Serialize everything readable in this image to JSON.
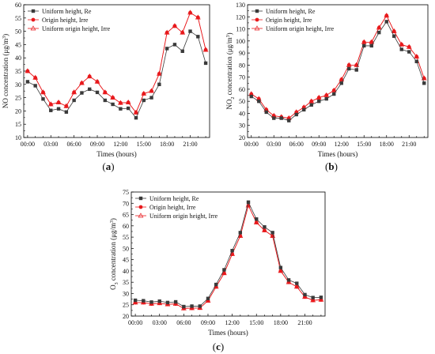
{
  "colors": {
    "re": "#3a3a3a",
    "irre": "#e8191c",
    "uniform_irre": "#e8191c"
  },
  "chart_data": [
    {
      "panel": "(a)",
      "type": "line",
      "xlabel": "Times (hours)",
      "ylabel": "NO concentration (μg/m³)",
      "ylabel_parts": {
        "main": "NO concentration (μg/m",
        "sup": "3",
        "end": ")"
      },
      "x_ticks": [
        "00:00",
        "03:00",
        "06:00",
        "09:00",
        "12:00",
        "15:00",
        "18:00",
        "21:00"
      ],
      "y_ticks": [
        "10",
        "15",
        "20",
        "25",
        "30",
        "35",
        "40",
        "45",
        "50",
        "55",
        "60"
      ],
      "ylim": [
        10,
        60
      ],
      "xlim": [
        -0.5,
        23.5
      ],
      "legend_position": "top-left",
      "x": [
        0,
        1,
        2,
        3,
        4,
        5,
        6,
        7,
        8,
        9,
        10,
        11,
        12,
        13,
        14,
        15,
        16,
        17,
        18,
        19,
        20,
        21,
        22,
        23
      ],
      "series": [
        {
          "name": "Uniform height, Re",
          "marker": "square",
          "values": [
            31,
            29.5,
            24.5,
            20.2,
            20.8,
            19.6,
            24,
            26.8,
            28.2,
            27,
            24,
            22.5,
            20.8,
            21,
            17.4,
            24,
            25,
            30,
            43.5,
            45,
            42.5,
            50,
            48,
            38
          ]
        },
        {
          "name": "Origin height, Irre",
          "marker": "circle",
          "values": [
            35,
            32.5,
            27,
            22.5,
            23.2,
            21.8,
            27,
            30.5,
            33,
            31,
            27,
            25,
            23,
            23.2,
            19.4,
            26.5,
            27.5,
            34,
            49.5,
            52,
            49.5,
            57,
            55.2,
            43
          ]
        },
        {
          "name": "Uniform origin height, Irre",
          "marker": "triangle",
          "values": [
            35,
            32.5,
            27,
            22.5,
            23.2,
            21.8,
            27,
            30.5,
            33,
            31,
            27,
            25,
            23,
            23.2,
            19.4,
            26.5,
            27.5,
            34,
            49.5,
            52,
            49.5,
            57,
            55.2,
            43
          ]
        }
      ]
    },
    {
      "panel": "(b)",
      "type": "line",
      "xlabel": "Times (hours)",
      "ylabel": "NO₂ concentration (μg/m³)",
      "ylabel_parts": {
        "main": "NO",
        "sub": "2",
        "mid": " concentration (μg/m",
        "sup": "3",
        "end": ")"
      },
      "x_ticks": [
        "00:00",
        "03:00",
        "06:00",
        "09:00",
        "12:00",
        "15:00",
        "18:00",
        "21:00"
      ],
      "y_ticks": [
        "20",
        "30",
        "40",
        "50",
        "60",
        "70",
        "80",
        "90",
        "100",
        "110",
        "120",
        "130"
      ],
      "ylim": [
        20,
        130
      ],
      "xlim": [
        -0.5,
        23.5
      ],
      "legend_position": "top-left",
      "x": [
        0,
        1,
        2,
        3,
        4,
        5,
        6,
        7,
        8,
        9,
        10,
        11,
        12,
        13,
        14,
        15,
        16,
        17,
        18,
        19,
        20,
        21,
        22,
        23
      ],
      "series": [
        {
          "name": "Uniform height, Re",
          "marker": "square",
          "values": [
            54,
            50,
            41,
            36,
            36,
            34,
            39,
            43,
            47,
            50,
            52,
            56,
            65,
            77,
            76,
            96,
            96,
            107,
            116,
            104,
            93,
            91,
            83,
            65
          ]
        },
        {
          "name": "Origin height, Irre",
          "marker": "circle",
          "values": [
            56,
            52,
            43,
            38,
            37,
            36,
            41,
            45,
            50,
            53,
            55,
            59,
            68,
            80,
            80,
            99,
            99,
            111,
            121,
            108,
            97,
            95,
            87,
            69
          ]
        },
        {
          "name": "Uniform origin height, Irre",
          "marker": "triangle",
          "values": [
            56,
            52,
            43,
            38,
            37,
            36,
            41,
            45,
            50,
            53,
            55,
            59,
            68,
            80,
            80,
            99,
            99,
            111,
            121,
            108,
            97,
            95,
            87,
            69
          ]
        }
      ]
    },
    {
      "panel": "(c)",
      "type": "line",
      "xlabel": "Times (hours)",
      "ylabel": "O₃ concentration (μg/m³)",
      "ylabel_parts": {
        "main": "O",
        "sub": "3",
        "mid": " concentration (μg/m",
        "sup": "3",
        "end": ")"
      },
      "x_ticks": [
        "00:00",
        "03:00",
        "06:00",
        "09:00",
        "12:00",
        "15:00",
        "18:00",
        "21:00"
      ],
      "y_ticks": [
        "20",
        "25",
        "30",
        "35",
        "40",
        "45",
        "50",
        "55",
        "60",
        "65",
        "70",
        "75"
      ],
      "ylim": [
        20,
        75
      ],
      "xlim": [
        -0.5,
        23.5
      ],
      "legend_position": "top-left",
      "x": [
        0,
        1,
        2,
        3,
        4,
        5,
        6,
        7,
        8,
        9,
        10,
        11,
        12,
        13,
        14,
        15,
        16,
        17,
        18,
        19,
        20,
        21,
        22,
        23
      ],
      "series": [
        {
          "name": "Uniform height, Re",
          "marker": "square",
          "values": [
            27,
            26.8,
            26.2,
            26.6,
            26,
            26.3,
            24.2,
            24.4,
            24.4,
            27.8,
            34,
            40.5,
            49,
            57,
            70.5,
            63,
            59.5,
            57,
            41.5,
            36,
            34.5,
            29.5,
            28.2,
            28.3
          ]
        },
        {
          "name": "Origin height, Irre",
          "marker": "circle",
          "values": [
            26,
            26,
            25.4,
            25.7,
            25.2,
            25.4,
            23.4,
            23.5,
            23.6,
            26.8,
            33,
            39,
            47.5,
            55.5,
            69,
            61.5,
            58,
            55.5,
            40,
            35,
            33,
            28.5,
            27,
            27.2
          ]
        },
        {
          "name": "Uniform origin height, Irre",
          "marker": "triangle",
          "values": [
            26,
            26,
            25.4,
            25.7,
            25.2,
            25.4,
            23.4,
            23.5,
            23.6,
            26.8,
            33,
            39,
            47.5,
            55.5,
            69,
            61.5,
            58,
            55.5,
            40,
            35,
            33,
            28.5,
            27,
            27.2
          ]
        }
      ]
    }
  ]
}
